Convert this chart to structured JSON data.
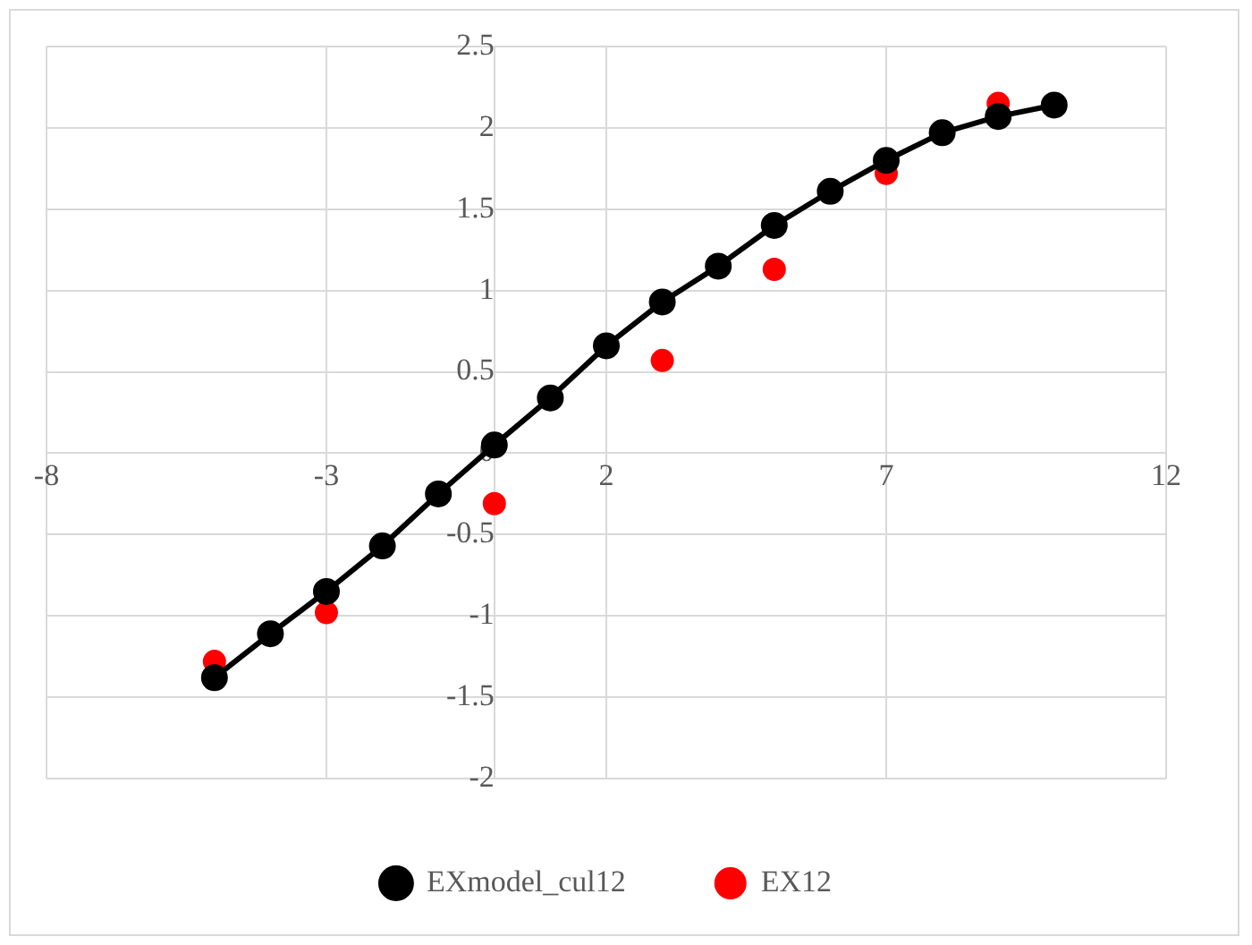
{
  "chart_data": {
    "type": "line",
    "x": [
      -5,
      -4,
      -3,
      -2,
      -1,
      0,
      1,
      2,
      3,
      4,
      5,
      6,
      7,
      8,
      9,
      10
    ],
    "series": [
      {
        "name": "EXmodel_cul12",
        "color": "#000000",
        "values": [
          -1.38,
          -1.11,
          -0.85,
          -0.57,
          -0.25,
          0.05,
          0.34,
          0.66,
          0.93,
          1.15,
          1.4,
          1.61,
          1.8,
          1.97,
          2.07,
          2.14
        ]
      },
      {
        "name": "EX12",
        "type": "scatter",
        "color": "#ff0000",
        "x": [
          -5,
          -3,
          0,
          3,
          5,
          7,
          9
        ],
        "values": [
          -1.28,
          -0.98,
          -0.31,
          0.57,
          1.13,
          1.72,
          2.15
        ]
      }
    ],
    "xlim": [
      -8,
      12
    ],
    "xticks": [
      -8,
      -3,
      2,
      7,
      12
    ],
    "ylim": [
      -2,
      2.5
    ],
    "yticks": [
      -2,
      -1.5,
      -1,
      -0.5,
      0,
      0.5,
      1,
      1.5,
      2,
      2.5
    ],
    "grid": true,
    "legend": "bottom",
    "marker": "circle",
    "line_style": "solid"
  }
}
